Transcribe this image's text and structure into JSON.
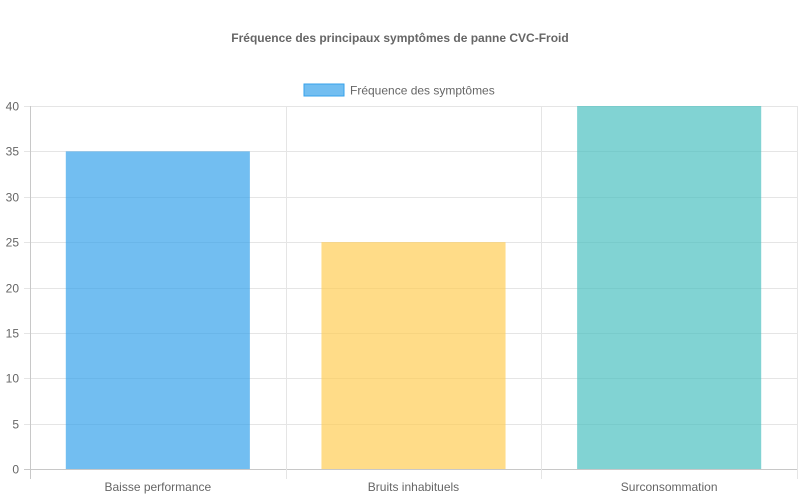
{
  "chart_data": {
    "type": "bar",
    "title": "Fréquence des principaux symptômes de panne CVC-Froid",
    "categories": [
      "Baisse performance",
      "Bruits inhabituels",
      "Surconsommation"
    ],
    "series": [
      {
        "name": "Fréquence des symptômes",
        "values": [
          35,
          25,
          40
        ],
        "colors": [
          "#36a2eb",
          "#ffcd56",
          "#4bc0c0"
        ]
      }
    ],
    "legend_color": "#36a2eb",
    "xlabel": "",
    "ylabel": "",
    "ylim": [
      0,
      40
    ],
    "yticks": [
      0,
      5,
      10,
      15,
      20,
      25,
      30,
      35,
      40
    ],
    "grid": true,
    "legend_position": "top-center"
  }
}
